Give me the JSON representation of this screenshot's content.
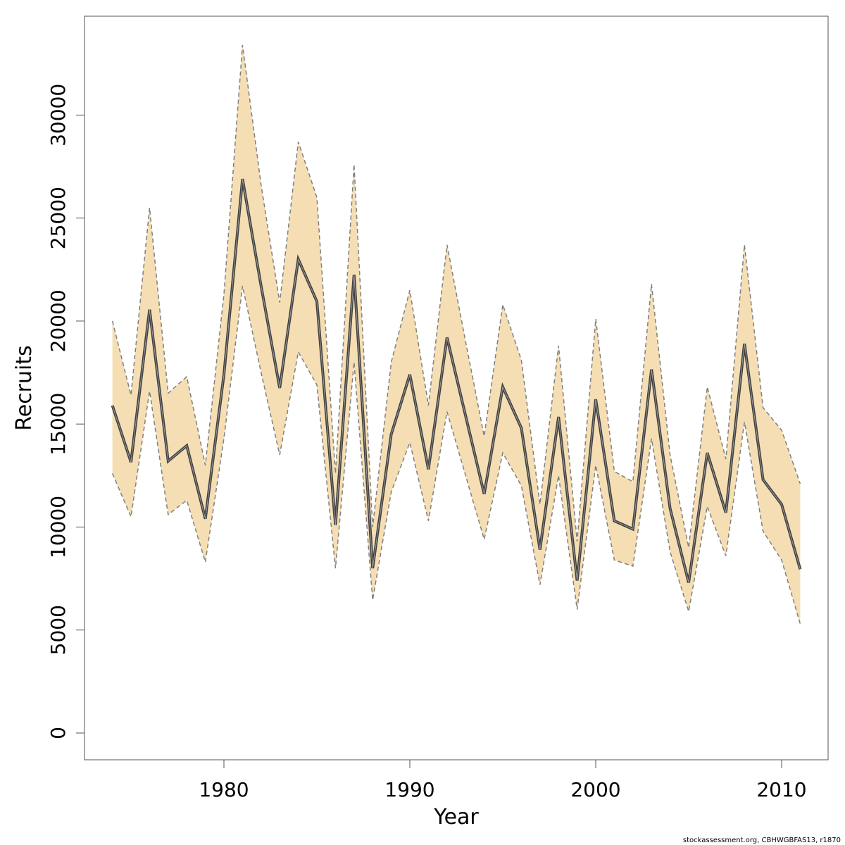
{
  "chart_data": {
    "type": "line",
    "title": "",
    "xlabel": "Year",
    "ylabel": "Recruits",
    "xlim": [
      1972.5,
      2012.5
    ],
    "ylim": [
      -1300,
      34800
    ],
    "x_ticks": [
      1980,
      1990,
      2000,
      2010
    ],
    "y_ticks": [
      0,
      5000,
      10000,
      15000,
      20000,
      25000,
      30000
    ],
    "grid": false,
    "legend": "none",
    "colors": {
      "band_fill": "#f5deb3",
      "band_edge": "#808080",
      "line": "#404040",
      "frame": "#555555"
    },
    "x": [
      1974,
      1975,
      1976,
      1977,
      1978,
      1979,
      1980,
      1981,
      1982,
      1983,
      1984,
      1985,
      1986,
      1987,
      1988,
      1989,
      1990,
      1991,
      1992,
      1993,
      1994,
      1995,
      1996,
      1997,
      1998,
      1999,
      2000,
      2001,
      2002,
      2003,
      2004,
      2005,
      2006,
      2007,
      2008,
      2009,
      2010,
      2011
    ],
    "series": [
      {
        "values": [
          15900,
          13150,
          20550,
          13200,
          13950,
          10400,
          17400,
          26900,
          21700,
          16750,
          23000,
          20950,
          10100,
          22250,
          8000,
          14500,
          17400,
          12800,
          19200,
          15400,
          11600,
          16800,
          14800,
          8900,
          15350,
          7400,
          16200,
          10300,
          9900,
          17650,
          10900,
          7300,
          13600,
          10700,
          18900,
          12300,
          11100,
          7950
        ]
      }
    ],
    "band": {
      "lower": [
        12600,
        10500,
        16600,
        10600,
        11300,
        8300,
        14300,
        21700,
        17500,
        13500,
        18500,
        16900,
        8000,
        18000,
        6450,
        11700,
        14100,
        10300,
        15600,
        12500,
        9400,
        13600,
        12000,
        7200,
        12500,
        6000,
        13000,
        8400,
        8100,
        14300,
        8800,
        5900,
        11000,
        8600,
        15100,
        9800,
        8400,
        5300
      ],
      "upper": [
        20000,
        16400,
        25500,
        16500,
        17300,
        13000,
        21300,
        33400,
        26600,
        20900,
        28700,
        26000,
        12600,
        27600,
        10000,
        18000,
        21500,
        15900,
        23700,
        19000,
        14400,
        20800,
        18100,
        11100,
        18800,
        9300,
        20100,
        12700,
        12200,
        21800,
        13500,
        9000,
        16800,
        13300,
        23700,
        15800,
        14700,
        12100
      ]
    },
    "credit": "stockassessment.org, CBHWGBFAS13, r1870"
  }
}
